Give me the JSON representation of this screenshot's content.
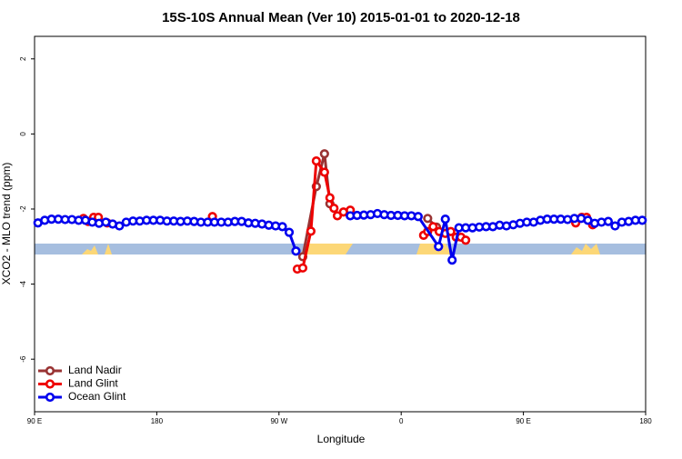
{
  "chart_data": {
    "type": "line",
    "title": "15S-10S Annual Mean (Ver 10)   2015-01-01 to 2020-12-18",
    "x_label": "Longitude",
    "y_label": "XCO2 - MLO trend (ppm)",
    "xlim": [
      90,
      540
    ],
    "ylim": [
      -7.4,
      2.6
    ],
    "xticks": [
      {
        "value": 90,
        "label": "90 E"
      },
      {
        "value": 180,
        "label": "180"
      },
      {
        "value": 270,
        "label": "90 W"
      },
      {
        "value": 360,
        "label": "0"
      },
      {
        "value": 450,
        "label": "90 E"
      },
      {
        "value": 540,
        "label": "180"
      }
    ],
    "yticks": [
      2,
      0,
      -2,
      -4,
      -6
    ],
    "legend": "bottom-left",
    "series": [
      {
        "name": "Land Nadir",
        "color": "#993333",
        "x": [
          287.5,
          297.5,
          303.5,
          307.5,
          379.5,
          386
        ],
        "values": [
          -3.27,
          -1.4,
          -0.53,
          -1.86,
          -2.25,
          -2.48
        ]
      },
      {
        "name": "Land Glint",
        "color": "#ee0000",
        "x": [
          126,
          129.5,
          133.5,
          137,
          143.5,
          221,
          283.5,
          287.5,
          293.5,
          297.5,
          303.5,
          307.5,
          310.5,
          313,
          317.5,
          322.5,
          376.5,
          379.5,
          383.5,
          388,
          392.5,
          396.5,
          400.5,
          404,
          407.5,
          488.5,
          493,
          496.5,
          501
        ],
        "values": [
          -2.25,
          -2.33,
          -2.22,
          -2.22,
          -2.37,
          -2.2,
          -3.6,
          -3.57,
          -2.59,
          -0.72,
          -1.02,
          -1.7,
          -1.98,
          -2.18,
          -2.08,
          -2.03,
          -2.7,
          -2.6,
          -2.47,
          -2.6,
          -2.65,
          -2.6,
          -2.75,
          -2.75,
          -2.83,
          -2.37,
          -2.22,
          -2.22,
          -2.42
        ]
      },
      {
        "name": "Ocean Glint",
        "color": "#0000ee",
        "x": [
          92.5,
          97.5,
          102.5,
          107.5,
          112.5,
          117.5,
          122.5,
          127.5,
          132.5,
          137.5,
          142.5,
          147.5,
          152.5,
          157.5,
          162.5,
          167.5,
          172.5,
          177.5,
          182.5,
          187.5,
          192.5,
          197.5,
          202.5,
          207.5,
          212.5,
          217.5,
          222.5,
          227.5,
          232.5,
          237.5,
          242.5,
          247.5,
          252.5,
          257.5,
          262.5,
          267.5,
          272.5,
          277.5,
          282.5,
          322.5,
          327.5,
          332.5,
          337.5,
          342.5,
          347.5,
          352.5,
          357.5,
          362.5,
          367.5,
          372.5,
          387.5,
          392.5,
          397.5,
          402.5,
          407.5,
          412.5,
          417.5,
          422.5,
          427.5,
          432.5,
          437.5,
          442.5,
          447.5,
          452.5,
          457.5,
          462.5,
          467.5,
          472.5,
          477.5,
          482.5,
          487.5,
          492.5,
          497.5,
          502.5,
          507.5,
          512.5,
          517.5,
          522.5,
          527.5,
          532.5,
          537.5
        ],
        "values": [
          -2.37,
          -2.3,
          -2.27,
          -2.27,
          -2.28,
          -2.28,
          -2.3,
          -2.3,
          -2.35,
          -2.38,
          -2.35,
          -2.4,
          -2.45,
          -2.35,
          -2.32,
          -2.32,
          -2.3,
          -2.3,
          -2.3,
          -2.32,
          -2.32,
          -2.33,
          -2.32,
          -2.33,
          -2.35,
          -2.35,
          -2.35,
          -2.35,
          -2.35,
          -2.33,
          -2.33,
          -2.37,
          -2.38,
          -2.4,
          -2.43,
          -2.45,
          -2.47,
          -2.62,
          -3.12,
          -2.18,
          -2.17,
          -2.16,
          -2.15,
          -2.12,
          -2.15,
          -2.17,
          -2.17,
          -2.18,
          -2.18,
          -2.2,
          -3.0,
          -2.27,
          -3.36,
          -2.5,
          -2.5,
          -2.5,
          -2.48,
          -2.47,
          -2.47,
          -2.43,
          -2.45,
          -2.42,
          -2.38,
          -2.35,
          -2.35,
          -2.3,
          -2.27,
          -2.27,
          -2.27,
          -2.28,
          -2.25,
          -2.25,
          -2.3,
          -2.38,
          -2.35,
          -2.33,
          -2.45,
          -2.35,
          -2.33,
          -2.3,
          -2.3
        ]
      }
    ]
  }
}
